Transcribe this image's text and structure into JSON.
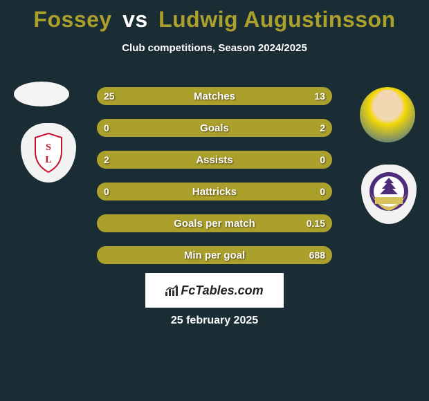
{
  "title": {
    "left_name": "Fossey",
    "vs": "vs",
    "right_name": "Ludwig Augustinsson",
    "left_color": "#aca02d",
    "right_color": "#aca02d",
    "vs_color": "#ffffff",
    "fontsize": 32
  },
  "subtitle": "Club competitions, Season 2024/2025",
  "subtitle_fontsize": 15,
  "background_color": "#1a2d35",
  "bar_style": {
    "track_color": "#8f8a3a",
    "fill_color": "#aca02d",
    "height": 26,
    "gap": 20,
    "radius": 13,
    "label_color": "#ffffff",
    "label_fontsize": 15,
    "value_fontsize": 14
  },
  "rows": [
    {
      "label": "Matches",
      "left_val": "25",
      "right_val": "13",
      "left_pct": 66,
      "right_pct": 34
    },
    {
      "label": "Goals",
      "left_val": "0",
      "right_val": "2",
      "left_pct": 0,
      "right_pct": 100
    },
    {
      "label": "Assists",
      "left_val": "2",
      "right_val": "0",
      "left_pct": 100,
      "right_pct": 0
    },
    {
      "label": "Hattricks",
      "left_val": "0",
      "right_val": "0",
      "left_pct": 50,
      "right_pct": 50
    },
    {
      "label": "Goals per match",
      "left_val": "",
      "right_val": "0.15",
      "left_pct": 0,
      "right_pct": 100
    },
    {
      "label": "Min per goal",
      "left_val": "",
      "right_val": "688",
      "left_pct": 0,
      "right_pct": 100
    }
  ],
  "logo": {
    "text": "FcTables.com",
    "box_bg": "#ffffff",
    "text_color": "#222222"
  },
  "date": "25 february 2025"
}
